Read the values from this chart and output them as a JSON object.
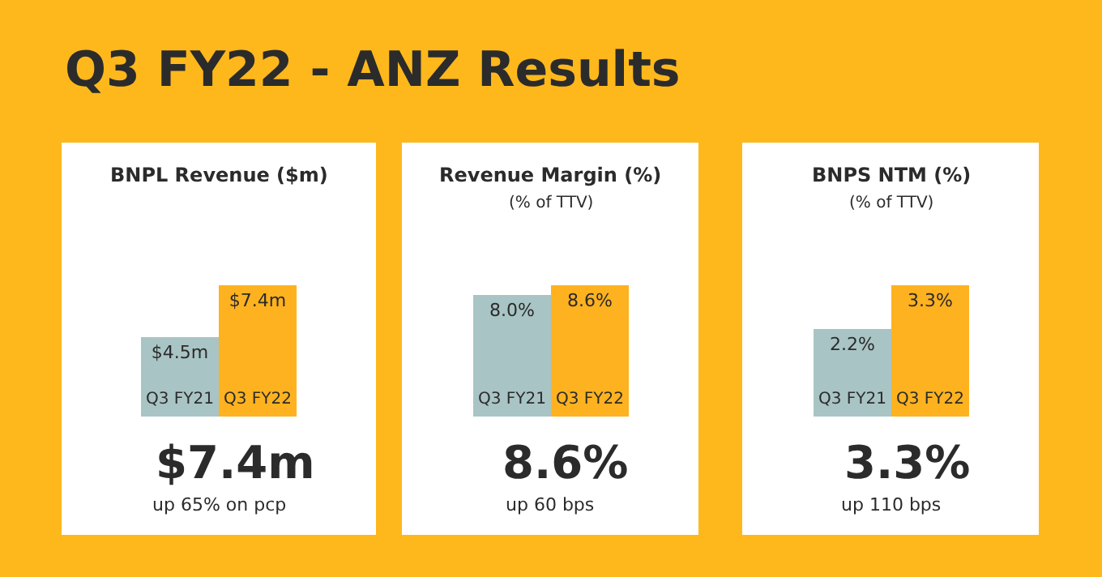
{
  "chart_data": [
    {
      "type": "other",
      "title": "Q3 FY22 - ANZ Results"
    },
    {
      "type": "bar",
      "title": "BNPL Revenue ($m)",
      "categories": [
        "Q3 FY21",
        "Q3 FY22"
      ],
      "values": [
        4.5,
        7.4
      ],
      "colors": [
        "#a9c4c4",
        "#ffb21f"
      ],
      "value_labels": [
        "$4.5m",
        "$7.4m"
      ],
      "annotations": [
        "$7.4m",
        "up 65% on pcp"
      ]
    },
    {
      "type": "bar",
      "title": "Revenue Margin (%)",
      "subtitle": "(% of TTV)",
      "categories": [
        "Q3 FY21",
        "Q3 FY22"
      ],
      "values": [
        8.0,
        8.6
      ],
      "colors": [
        "#a9c4c4",
        "#ffb21f"
      ],
      "value_labels": [
        "8.0%",
        "8.6%"
      ],
      "annotations": [
        "8.6%",
        "up 60 bps"
      ]
    },
    {
      "type": "bar",
      "title": "BNPS NTM (%)",
      "subtitle": "(% of TTV)",
      "categories": [
        "Q3 FY21",
        "Q3 FY22"
      ],
      "values": [
        2.2,
        3.3
      ],
      "colors": [
        "#a9c4c4",
        "#ffb21f"
      ],
      "value_labels": [
        "2.2%",
        "3.3%"
      ],
      "annotations": [
        "3.3%",
        "up 110 bps"
      ]
    }
  ]
}
